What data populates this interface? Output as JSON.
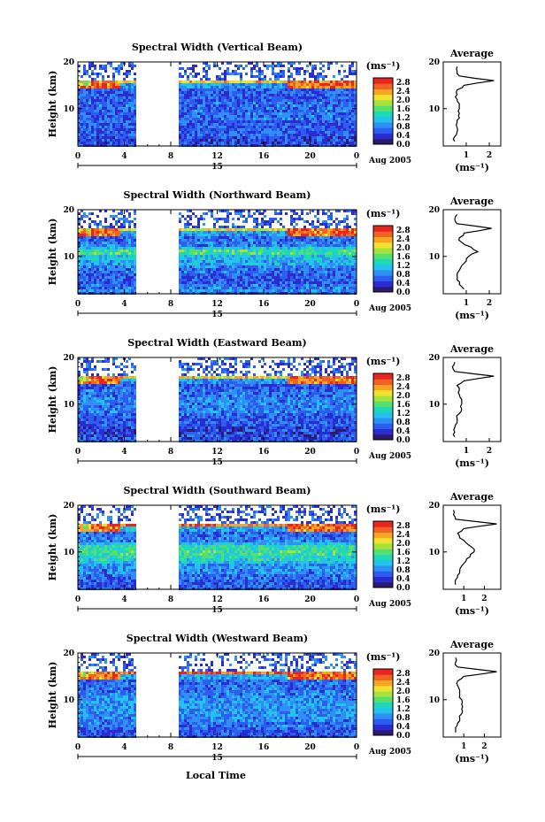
{
  "figure": {
    "xlabel": "Local Time",
    "colorbar_unit": "(ms⁻¹)",
    "avg_title": "Average",
    "avg_xlabel": "(ms⁻¹)",
    "date_day": "15",
    "date_text": "Aug 2005"
  },
  "chart_data": [
    {
      "type": "heatmap",
      "title": "Spectral Width (Vertical Beam)",
      "ylabel": "Height (km)",
      "x_ticks": [
        "0",
        "4",
        "8",
        "12",
        "16",
        "20",
        "0"
      ],
      "y_ticks": [
        "10",
        "20"
      ],
      "xlim": [
        0,
        24
      ],
      "ylim": [
        2,
        20
      ],
      "data_gap_hours": [
        4.9,
        8.6
      ],
      "colorbar_ticks": [
        "0.0",
        "0.4",
        "0.8",
        "1.2",
        "1.6",
        "2.0",
        "2.4",
        "2.8"
      ],
      "colorbar_range": [
        0.0,
        3.0
      ],
      "avg_xticks": [
        "1",
        "2"
      ],
      "avg_xlim": [
        0.0,
        2.5
      ],
      "avg_peak_height_km": 15.5,
      "avg_peak_value": 2.3,
      "heights_km": [
        3,
        4,
        5,
        6,
        7,
        8,
        9,
        10,
        11,
        12,
        13,
        14,
        15,
        16,
        17,
        18,
        19
      ],
      "avg_values": [
        0.5,
        0.5,
        0.6,
        0.6,
        0.6,
        0.7,
        0.7,
        0.7,
        0.7,
        0.6,
        0.6,
        0.6,
        0.9,
        2.2,
        0.7,
        0.6,
        0.6
      ]
    },
    {
      "type": "heatmap",
      "title": "Spectral Width (Northward Beam)",
      "ylabel": "Height (km)",
      "x_ticks": [
        "0",
        "4",
        "8",
        "12",
        "16",
        "20",
        "0"
      ],
      "y_ticks": [
        "10",
        "20"
      ],
      "xlim": [
        0,
        24
      ],
      "ylim": [
        2,
        20
      ],
      "data_gap_hours": [
        4.9,
        8.6
      ],
      "colorbar_ticks": [
        "0.0",
        "0.4",
        "0.8",
        "1.2",
        "1.6",
        "2.0",
        "2.4",
        "2.8"
      ],
      "colorbar_range": [
        0.0,
        3.0
      ],
      "avg_xticks": [
        "1",
        "2"
      ],
      "avg_xlim": [
        0.0,
        2.5
      ],
      "avg_peak_height_km": 15.5,
      "avg_peak_value": 2.2,
      "heights_km": [
        3,
        4,
        5,
        6,
        7,
        8,
        9,
        10,
        11,
        12,
        13,
        14,
        15,
        16,
        17,
        18,
        19
      ],
      "avg_values": [
        0.9,
        0.7,
        0.6,
        0.6,
        0.7,
        0.8,
        1.0,
        1.1,
        1.5,
        1.2,
        0.8,
        0.7,
        0.9,
        2.1,
        0.6,
        0.5,
        0.6
      ]
    },
    {
      "type": "heatmap",
      "title": "Spectral Width (Eastward Beam)",
      "ylabel": "Height (km)",
      "x_ticks": [
        "0",
        "4",
        "8",
        "12",
        "16",
        "20",
        "0"
      ],
      "y_ticks": [
        "10",
        "20"
      ],
      "xlim": [
        0,
        24
      ],
      "ylim": [
        2,
        20
      ],
      "data_gap_hours": [
        4.9,
        8.6
      ],
      "colorbar_ticks": [
        "0.0",
        "0.4",
        "0.8",
        "1.2",
        "1.6",
        "2.0",
        "2.4",
        "2.8"
      ],
      "colorbar_range": [
        0.0,
        3.0
      ],
      "avg_xticks": [
        "1",
        "2"
      ],
      "avg_xlim": [
        0.0,
        2.5
      ],
      "avg_peak_height_km": 15.5,
      "avg_peak_value": 2.3,
      "heights_km": [
        3,
        4,
        5,
        6,
        7,
        8,
        9,
        10,
        11,
        12,
        13,
        14,
        15,
        16,
        17,
        18,
        19
      ],
      "avg_values": [
        0.5,
        0.5,
        0.5,
        0.6,
        0.6,
        0.7,
        0.8,
        0.8,
        0.8,
        0.7,
        0.7,
        0.6,
        0.9,
        2.2,
        0.5,
        0.4,
        0.5
      ]
    },
    {
      "type": "heatmap",
      "title": "Spectral Width (Southward Beam)",
      "ylabel": "Height (km)",
      "x_ticks": [
        "0",
        "4",
        "8",
        "12",
        "16",
        "20",
        "0"
      ],
      "y_ticks": [
        "10",
        "20"
      ],
      "xlim": [
        0,
        24
      ],
      "ylim": [
        2,
        20
      ],
      "data_gap_hours": [
        4.9,
        8.6
      ],
      "colorbar_ticks": [
        "0.0",
        "0.4",
        "0.8",
        "1.2",
        "1.6",
        "2.0",
        "2.4",
        "2.8"
      ],
      "colorbar_range": [
        0.0,
        3.0
      ],
      "avg_xticks": [
        "1",
        "2"
      ],
      "avg_xlim": [
        0.0,
        2.8
      ],
      "avg_peak_height_km": 15.5,
      "avg_peak_value": 2.6,
      "heights_km": [
        3,
        4,
        5,
        6,
        7,
        8,
        9,
        10,
        11,
        12,
        13,
        14,
        15,
        16,
        17,
        18,
        19
      ],
      "avg_values": [
        0.6,
        0.6,
        0.7,
        0.8,
        0.9,
        1.1,
        1.3,
        1.5,
        1.4,
        1.1,
        0.8,
        0.7,
        1.0,
        2.6,
        0.6,
        0.5,
        0.5
      ]
    },
    {
      "type": "heatmap",
      "title": "Spectral Width (Westward Beam)",
      "ylabel": "Height (km)",
      "x_ticks": [
        "0",
        "4",
        "8",
        "12",
        "16",
        "20",
        "0"
      ],
      "y_ticks": [
        "10",
        "20"
      ],
      "xlim": [
        0,
        24
      ],
      "ylim": [
        2,
        20
      ],
      "data_gap_hours": [
        4.9,
        8.6
      ],
      "colorbar_ticks": [
        "0.0",
        "0.4",
        "0.8",
        "1.2",
        "1.6",
        "2.0",
        "2.4",
        "2.8"
      ],
      "colorbar_range": [
        0.0,
        3.0
      ],
      "avg_xticks": [
        "1",
        "2"
      ],
      "avg_xlim": [
        0.0,
        2.8
      ],
      "avg_peak_height_km": 15.5,
      "avg_peak_value": 2.6,
      "heights_km": [
        3,
        4,
        5,
        6,
        7,
        8,
        9,
        10,
        11,
        12,
        13,
        14,
        15,
        16,
        17,
        18,
        19
      ],
      "avg_values": [
        0.6,
        0.6,
        0.7,
        0.8,
        0.9,
        0.9,
        0.9,
        0.9,
        0.8,
        0.8,
        0.7,
        0.7,
        1.0,
        2.6,
        0.7,
        0.6,
        0.6
      ]
    }
  ],
  "colors": {
    "colormap": [
      "#2c1a6e",
      "#2a2bd0",
      "#2d5cf0",
      "#2f8ff5",
      "#23c3f0",
      "#1ed8b8",
      "#54e071",
      "#a5e23c",
      "#f0e22e",
      "#f7a523",
      "#f06322",
      "#e8261f"
    ]
  }
}
